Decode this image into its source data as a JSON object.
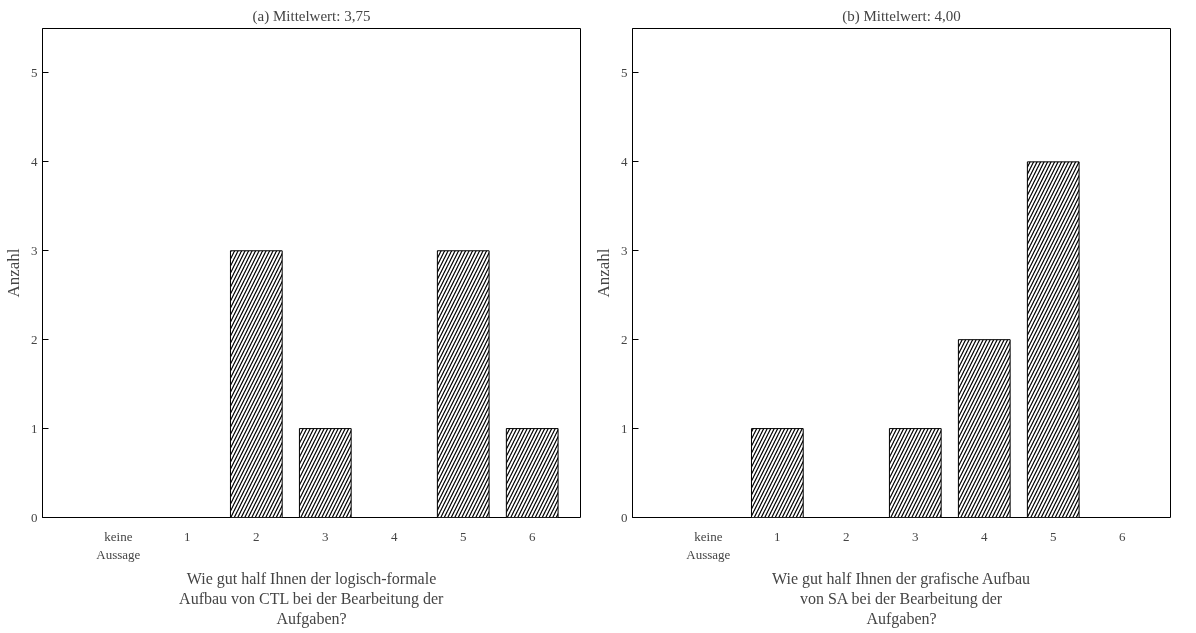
{
  "chart_data": [
    {
      "type": "bar",
      "title": "(a) Mittelwert: 3,75",
      "xlabel": "Wie gut half Ihnen der logisch-formale Aufbau von CTL bei der Bearbeitung der Aufgaben?",
      "ylabel": "Anzahl",
      "categories": [
        "keine\nAussage",
        "1",
        "2",
        "3",
        "4",
        "5",
        "6"
      ],
      "series": [
        {
          "color": "#000000",
          "values": [
            0,
            0,
            3,
            1,
            0,
            3,
            1
          ]
        }
      ],
      "ylim": [
        0,
        5.5
      ],
      "yticks": [
        0,
        1,
        2,
        3,
        4,
        5
      ]
    },
    {
      "type": "bar",
      "title": "(b) Mittelwert: 4,00",
      "xlabel": "Wie gut half Ihnen der grafische Aufbau von SA bei der Bearbeitung der Aufgaben?",
      "ylabel": "Anzahl",
      "categories": [
        "keine\nAussage",
        "1",
        "2",
        "3",
        "4",
        "5",
        "6"
      ],
      "series": [
        {
          "color": "#000000",
          "values": [
            0,
            1,
            0,
            1,
            2,
            4,
            0
          ]
        }
      ],
      "ylim": [
        0,
        5.5
      ],
      "yticks": [
        0,
        1,
        2,
        3,
        4,
        5
      ]
    }
  ]
}
